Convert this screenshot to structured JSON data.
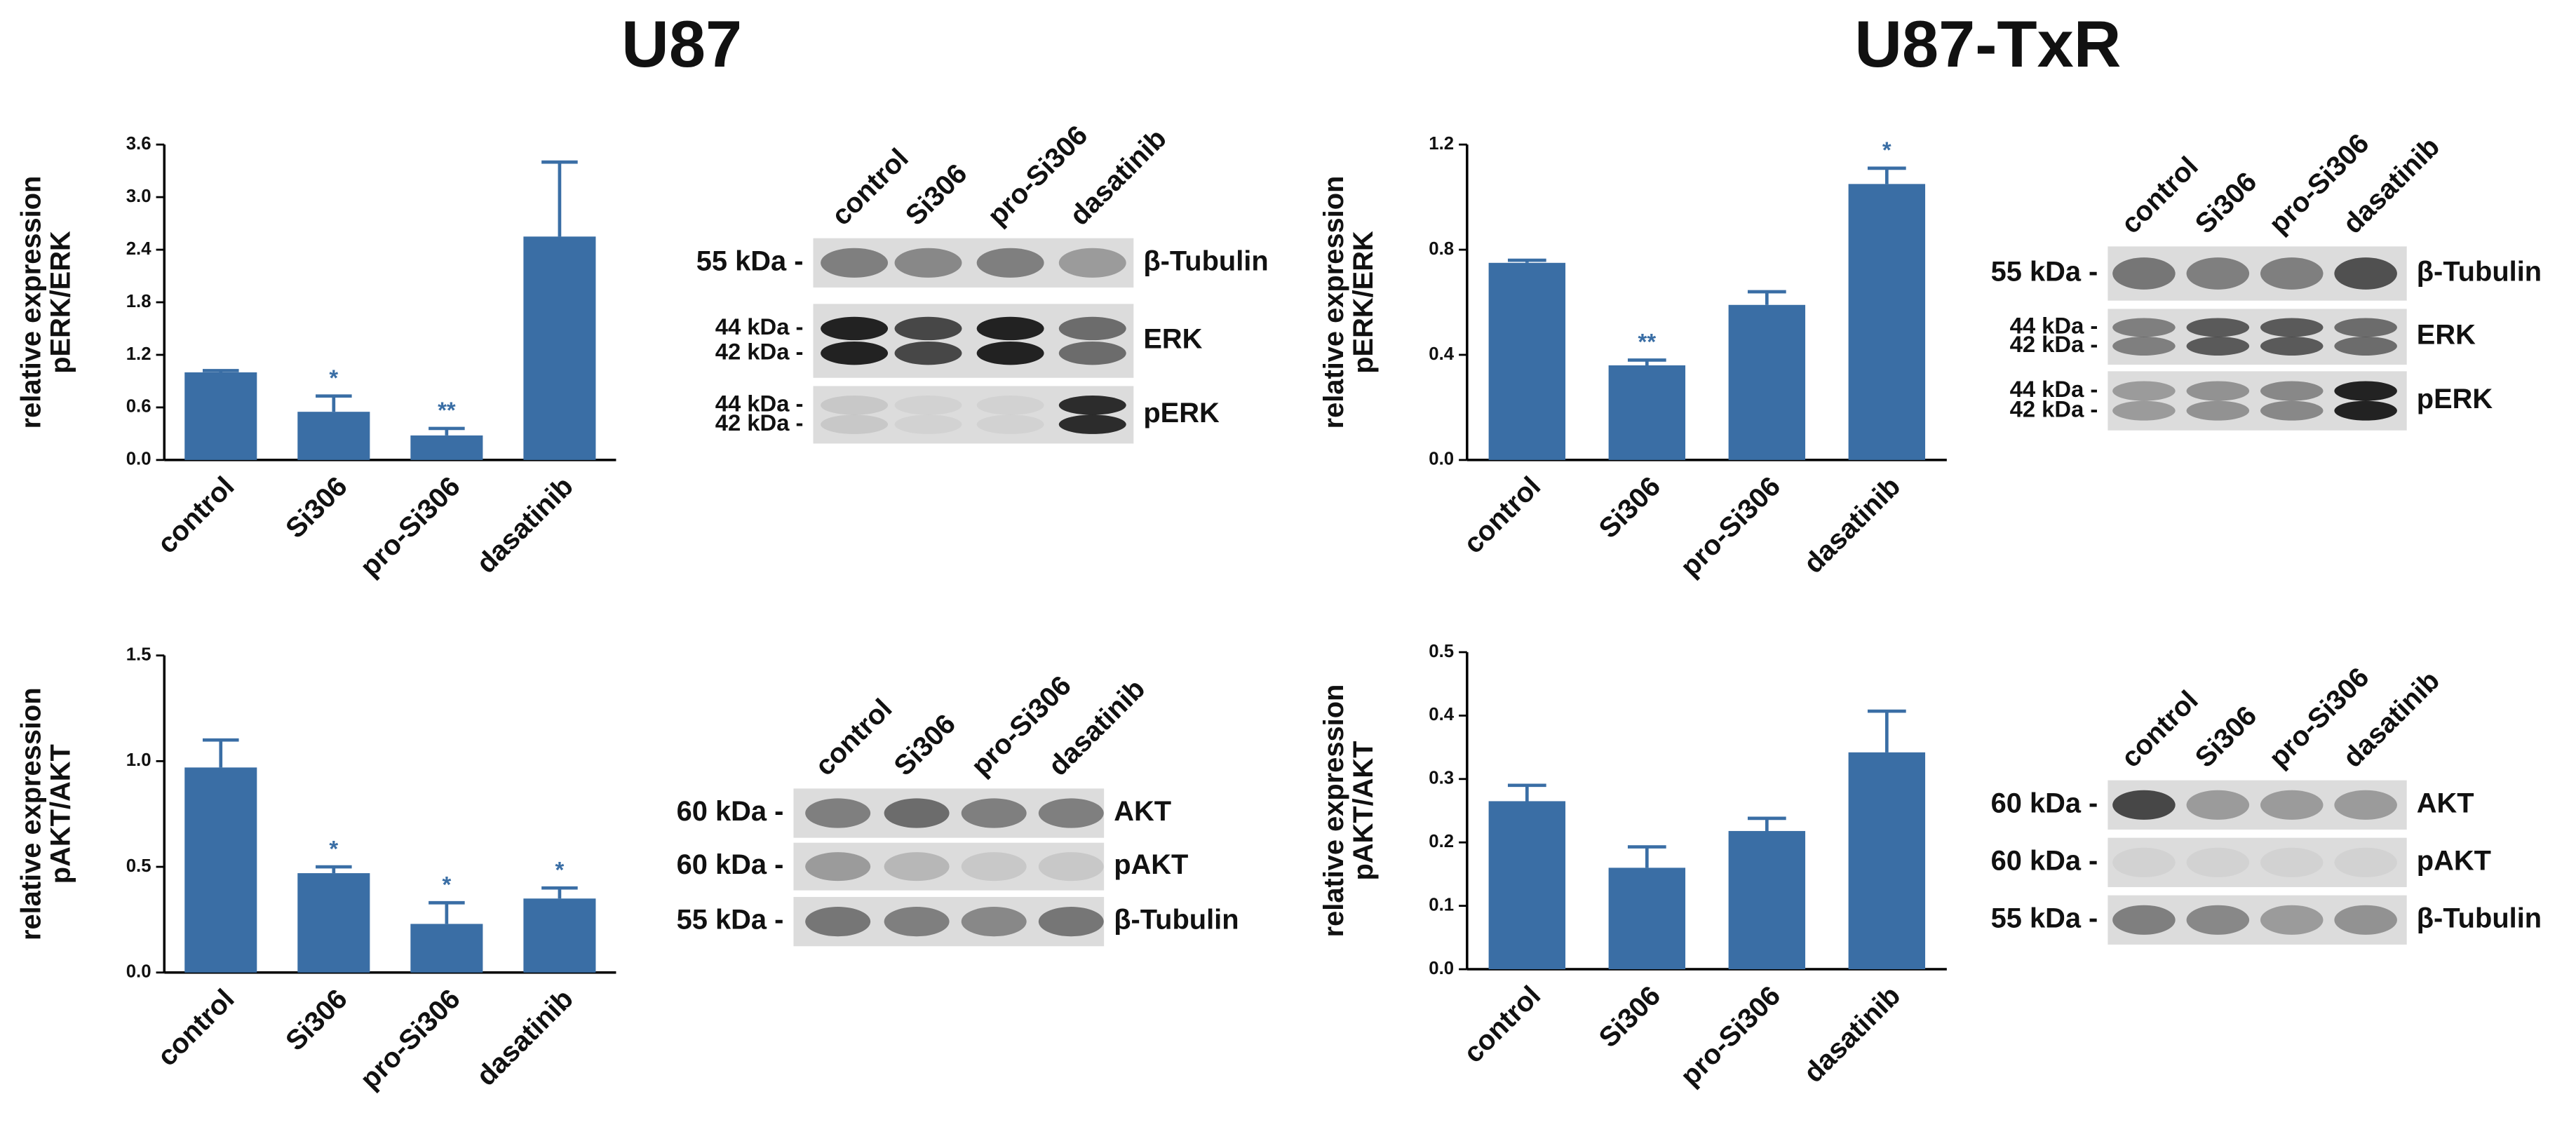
{
  "titles": [
    "U87",
    "U87-TxR"
  ],
  "chart_data": [
    {
      "type": "bar",
      "ylabel": [
        "relative expression",
        "pERK/ERK"
      ],
      "color": "#3a6ea5",
      "categories": [
        "control",
        "Si306",
        "pro-Si306",
        "dasatinib"
      ],
      "values": [
        1.0,
        0.55,
        0.28,
        2.55
      ],
      "errors": [
        0.02,
        0.18,
        0.08,
        0.85
      ],
      "annotations": [
        null,
        "*",
        "**",
        null
      ],
      "ylim": [
        0,
        3.6
      ],
      "yticks": [
        {
          "value": 0,
          "label": "0.0"
        },
        0.6,
        1.2,
        1.8,
        2.4,
        {
          "value": 3,
          "label": "3.0"
        },
        3.6
      ]
    },
    {
      "type": "bar",
      "ylabel": [
        "relative expression",
        "pERK/ERK"
      ],
      "color": "#3a6ea5",
      "categories": [
        "control",
        "Si306",
        "pro-Si306",
        "dasatinib"
      ],
      "values": [
        0.75,
        0.36,
        0.59,
        1.05
      ],
      "errors": [
        0.01,
        0.02,
        0.05,
        0.06
      ],
      "annotations": [
        null,
        "**",
        null,
        "*"
      ],
      "ylim": [
        0,
        1.2
      ],
      "yticks": [
        {
          "value": 0,
          "label": "0.0"
        },
        0.4,
        0.8,
        1.2
      ]
    },
    {
      "type": "bar",
      "ylabel": [
        "relative expression",
        "pAKT/AKT"
      ],
      "color": "#3a6ea5",
      "categories": [
        "control",
        "Si306",
        "pro-Si306",
        "dasatinib"
      ],
      "values": [
        0.97,
        0.47,
        0.23,
        0.35
      ],
      "errors": [
        0.13,
        0.03,
        0.1,
        0.05
      ],
      "annotations": [
        null,
        "*",
        "*",
        "*"
      ],
      "ylim": [
        0,
        1.5
      ],
      "yticks": [
        {
          "value": 0,
          "label": "0.0"
        },
        0.5,
        {
          "value": 1,
          "label": "1.0"
        },
        1.5
      ]
    },
    {
      "type": "bar",
      "ylabel": [
        "relative expression",
        "pAKT/AKT"
      ],
      "color": "#3a6ea5",
      "categories": [
        "control",
        "Si306",
        "pro-Si306",
        "dasatinib"
      ],
      "values": [
        0.265,
        0.16,
        0.218,
        0.342
      ],
      "errors": [
        0.025,
        0.033,
        0.02,
        0.065
      ],
      "ylim": [
        0,
        0.5
      ],
      "yticks": [
        {
          "value": 0,
          "label": "0.0"
        },
        0.1,
        0.2,
        0.3,
        0.4,
        0.5
      ]
    }
  ],
  "blots": [
    {
      "lanes": [
        "control",
        "Si306",
        "pro-Si306",
        "dasatinib"
      ],
      "rows": [
        {
          "markers": [
            "55 kDa -"
          ],
          "name": "β-Tubulin"
        },
        {
          "markers": [
            "44 kDa -",
            "42 kDa -"
          ],
          "name": "ERK"
        },
        {
          "markers": [
            "44 kDa -",
            "42 kDa -"
          ],
          "name": "pERK"
        }
      ]
    },
    {
      "lanes": [
        "control",
        "Si306",
        "pro-Si306",
        "dasatinib"
      ],
      "rows": [
        {
          "markers": [
            "55 kDa -"
          ],
          "name": "β-Tubulin"
        },
        {
          "markers": [
            "44 kDa -",
            "42 kDa -"
          ],
          "name": "ERK"
        },
        {
          "markers": [
            "44 kDa -",
            "42 kDa -"
          ],
          "name": "pERK"
        }
      ]
    },
    {
      "lanes": [
        "control",
        "Si306",
        "pro-Si306",
        "dasatinib"
      ],
      "rows": [
        {
          "markers": [
            "60 kDa -"
          ],
          "name": "AKT"
        },
        {
          "markers": [
            "60 kDa -"
          ],
          "name": "pAKT"
        },
        {
          "markers": [
            "55 kDa -"
          ],
          "name": "β-Tubulin"
        }
      ]
    },
    {
      "lanes": [
        "control",
        "Si306",
        "pro-Si306",
        "dasatinib"
      ],
      "rows": [
        {
          "markers": [
            "60 kDa -"
          ],
          "name": "AKT"
        },
        {
          "markers": [
            "60 kDa -"
          ],
          "name": "pAKT"
        },
        {
          "markers": [
            "55 kDa -"
          ],
          "name": "β-Tubulin"
        }
      ]
    }
  ]
}
